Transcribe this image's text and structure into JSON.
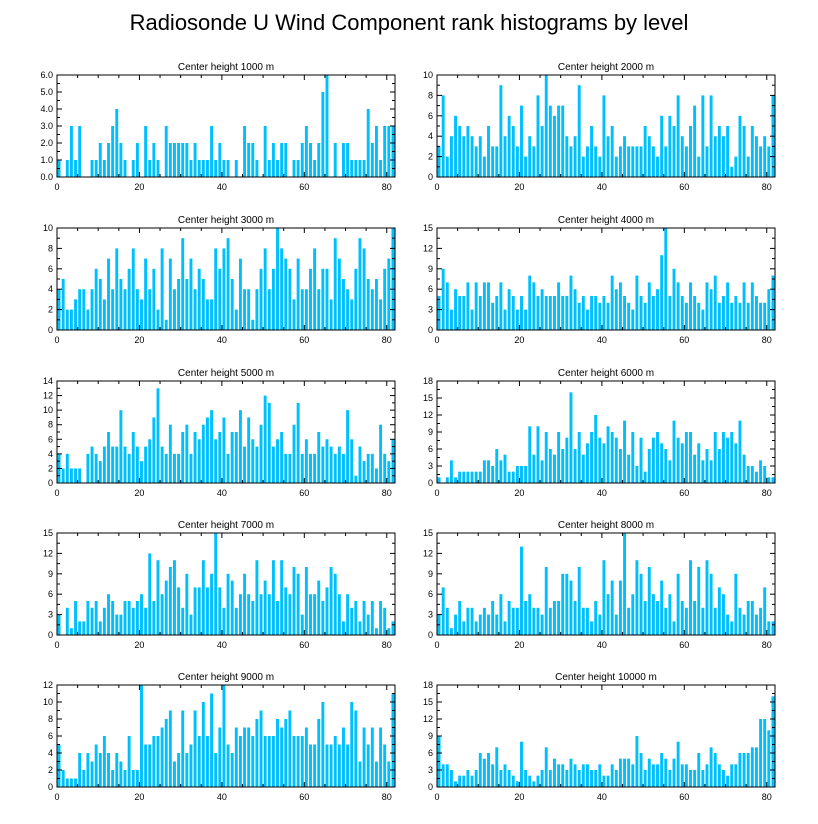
{
  "title": "Radiosonde U Wind Component rank histograms by level",
  "bar_color": "#00bfff",
  "frame_color": "#000000",
  "chart_data": [
    {
      "type": "bar",
      "title": "Center height 1000 m",
      "xlim": [
        0,
        82
      ],
      "ylim": [
        0,
        6
      ],
      "xticks": [
        0,
        20,
        40,
        60,
        80
      ],
      "yticks": [
        0,
        1,
        2,
        3,
        4,
        5,
        6
      ],
      "ytick_labels": [
        "0.0",
        "1.0",
        "2.0",
        "3.0",
        "4.0",
        "5.0",
        "6.0"
      ],
      "values": [
        1,
        0,
        1,
        3,
        1,
        3,
        0,
        0,
        1,
        1,
        2,
        1,
        2,
        3,
        4,
        2,
        1,
        0,
        1,
        2,
        0,
        3,
        1,
        2,
        1,
        0,
        3,
        2,
        2,
        2,
        2,
        2,
        1,
        2,
        1,
        1,
        1,
        3,
        1,
        2,
        1,
        1,
        0,
        1,
        0,
        3,
        2,
        2,
        1,
        0,
        3,
        1,
        2,
        1,
        2,
        2,
        0,
        1,
        1,
        2,
        3,
        2,
        1,
        2,
        5,
        6,
        0,
        2,
        0,
        2,
        2,
        1,
        1,
        1,
        1,
        4,
        2,
        3,
        1,
        3,
        3,
        3
      ]
    },
    {
      "type": "bar",
      "title": "Center height 2000 m",
      "xlim": [
        0,
        82
      ],
      "ylim": [
        0,
        10
      ],
      "xticks": [
        0,
        20,
        40,
        60,
        80
      ],
      "yticks": [
        0,
        2,
        4,
        6,
        8,
        10
      ],
      "ytick_labels": [
        "0",
        "2",
        "4",
        "6",
        "8",
        "10"
      ],
      "values": [
        3,
        8,
        2,
        4,
        6,
        5,
        4,
        5,
        4,
        3,
        4,
        2,
        5,
        3,
        3,
        9,
        4,
        6,
        5,
        3,
        7,
        2,
        4,
        3,
        8,
        5,
        10,
        7,
        6,
        7,
        7,
        4,
        3,
        4,
        9,
        2,
        3,
        5,
        3,
        2,
        8,
        4,
        5,
        2,
        3,
        4,
        3,
        3,
        3,
        3,
        5,
        4,
        3,
        2,
        6,
        3,
        6,
        5,
        8,
        4,
        3,
        5,
        7,
        2,
        8,
        3,
        8,
        4,
        5,
        4,
        5,
        1,
        2,
        6,
        5,
        2,
        5,
        4,
        3,
        4,
        3,
        8
      ]
    },
    {
      "type": "bar",
      "title": "Center height 3000 m",
      "xlim": [
        0,
        82
      ],
      "ylim": [
        0,
        10
      ],
      "xticks": [
        0,
        20,
        40,
        60,
        80
      ],
      "yticks": [
        0,
        2,
        4,
        6,
        8,
        10
      ],
      "ytick_labels": [
        "0",
        "2",
        "4",
        "6",
        "8",
        "10"
      ],
      "values": [
        4,
        5,
        2,
        2,
        3,
        4,
        4,
        2,
        4,
        6,
        5,
        3,
        7,
        4,
        8,
        5,
        4,
        6,
        8,
        4,
        3,
        7,
        4,
        6,
        2,
        8,
        1,
        7,
        4,
        5,
        9,
        5,
        7,
        4,
        6,
        5,
        3,
        3,
        8,
        6,
        8,
        9,
        5,
        2,
        7,
        4,
        4,
        1,
        4,
        6,
        8,
        4,
        6,
        10,
        8,
        7,
        6,
        3,
        7,
        4,
        4,
        6,
        8,
        4,
        6,
        6,
        3,
        9,
        7,
        5,
        4,
        3,
        6,
        9,
        8,
        5,
        4,
        5,
        3,
        6,
        7,
        10
      ]
    },
    {
      "type": "bar",
      "title": "Center height 4000 m",
      "xlim": [
        0,
        82
      ],
      "ylim": [
        0,
        15
      ],
      "xticks": [
        0,
        20,
        40,
        60,
        80
      ],
      "yticks": [
        0,
        3,
        6,
        9,
        12,
        15
      ],
      "ytick_labels": [
        "0",
        "3",
        "6",
        "9",
        "12",
        "15"
      ],
      "values": [
        5,
        9,
        7,
        3,
        6,
        5,
        5,
        7,
        3,
        7,
        5,
        7,
        7,
        4,
        5,
        7,
        3,
        6,
        5,
        3,
        5,
        3,
        8,
        7,
        5,
        6,
        5,
        5,
        5,
        7,
        5,
        5,
        8,
        6,
        4,
        5,
        3,
        5,
        5,
        4,
        5,
        4,
        8,
        6,
        7,
        5,
        4,
        3,
        8,
        5,
        4,
        7,
        5,
        6,
        11,
        15,
        5,
        9,
        7,
        5,
        4,
        7,
        5,
        4,
        3,
        7,
        6,
        8,
        4,
        5,
        7,
        4,
        5,
        4,
        7,
        4,
        7,
        5,
        4,
        4,
        6,
        8
      ]
    },
    {
      "type": "bar",
      "title": "Center height 5000 m",
      "xlim": [
        0,
        82
      ],
      "ylim": [
        0,
        14
      ],
      "xticks": [
        0,
        20,
        40,
        60,
        80
      ],
      "yticks": [
        0,
        2,
        4,
        6,
        8,
        10,
        12,
        14
      ],
      "ytick_labels": [
        "0",
        "2",
        "4",
        "6",
        "8",
        "10",
        "12",
        "14"
      ],
      "values": [
        4,
        2,
        4,
        2,
        2,
        2,
        0,
        4,
        5,
        4,
        3,
        5,
        7,
        5,
        5,
        10,
        5,
        4,
        7,
        5,
        3,
        5,
        6,
        9,
        13,
        5,
        4,
        8,
        4,
        4,
        7,
        8,
        4,
        7,
        6,
        8,
        9,
        10,
        6,
        7,
        9,
        4,
        7,
        7,
        10,
        5,
        9,
        6,
        5,
        8,
        12,
        11,
        5,
        6,
        7,
        4,
        4,
        8,
        11,
        4,
        6,
        4,
        4,
        7,
        5,
        6,
        5,
        4,
        5,
        4,
        10,
        6,
        1,
        5,
        3,
        4,
        4,
        2,
        8,
        4,
        3,
        6
      ]
    },
    {
      "type": "bar",
      "title": "Center height 6000 m",
      "xlim": [
        0,
        82
      ],
      "ylim": [
        0,
        18
      ],
      "xticks": [
        0,
        20,
        40,
        60,
        80
      ],
      "yticks": [
        0,
        3,
        6,
        9,
        12,
        15,
        18
      ],
      "ytick_labels": [
        "0",
        "3",
        "6",
        "9",
        "12",
        "15",
        "18"
      ],
      "values": [
        1,
        0,
        1,
        4,
        1,
        2,
        2,
        2,
        2,
        2,
        2,
        4,
        4,
        3,
        6,
        4,
        5,
        2,
        2,
        3,
        3,
        3,
        10,
        5,
        10,
        4,
        9,
        6,
        5,
        9,
        6,
        8,
        16,
        6,
        9,
        5,
        7,
        9,
        12,
        8,
        7,
        10,
        9,
        8,
        6,
        11,
        5,
        9,
        3,
        8,
        2,
        6,
        8,
        9,
        7,
        6,
        4,
        11,
        8,
        7,
        9,
        9,
        5,
        7,
        4,
        6,
        4,
        9,
        6,
        9,
        8,
        9,
        7,
        11,
        5,
        3,
        3,
        2,
        4,
        3,
        1,
        1
      ]
    },
    {
      "type": "bar",
      "title": "Center height 7000 m",
      "xlim": [
        0,
        82
      ],
      "ylim": [
        0,
        15
      ],
      "xticks": [
        0,
        20,
        40,
        60,
        80
      ],
      "yticks": [
        0,
        3,
        6,
        9,
        12,
        15
      ],
      "ytick_labels": [
        "0",
        "3",
        "6",
        "9",
        "12",
        "15"
      ],
      "values": [
        3,
        0,
        4,
        1,
        5,
        2,
        2,
        5,
        4,
        5,
        2,
        4,
        6,
        5,
        3,
        3,
        5,
        5,
        4,
        5,
        6,
        4,
        12,
        5,
        11,
        6,
        8,
        10,
        11,
        7,
        4,
        9,
        3,
        7,
        7,
        11,
        7,
        9,
        15,
        7,
        4,
        9,
        8,
        4,
        6,
        9,
        6,
        5,
        11,
        6,
        8,
        6,
        11,
        5,
        11,
        7,
        6,
        10,
        9,
        3,
        10,
        6,
        6,
        8,
        5,
        7,
        10,
        9,
        6,
        2,
        6,
        4,
        5,
        2,
        5,
        3,
        5,
        1,
        5,
        4,
        1,
        2
      ]
    },
    {
      "type": "bar",
      "title": "Center height 8000 m",
      "xlim": [
        0,
        82
      ],
      "ylim": [
        0,
        15
      ],
      "xticks": [
        0,
        20,
        40,
        60,
        80
      ],
      "yticks": [
        0,
        3,
        6,
        9,
        12,
        15
      ],
      "ytick_labels": [
        "0",
        "3",
        "6",
        "9",
        "12",
        "15"
      ],
      "values": [
        3,
        7,
        4,
        1,
        3,
        5,
        2,
        4,
        4,
        2,
        3,
        4,
        3,
        5,
        3,
        6,
        2,
        5,
        4,
        4,
        13,
        5,
        6,
        4,
        4,
        3,
        10,
        4,
        5,
        5,
        9,
        9,
        8,
        5,
        10,
        4,
        4,
        2,
        5,
        3,
        11,
        6,
        8,
        3,
        8,
        15,
        4,
        6,
        11,
        9,
        5,
        10,
        6,
        5,
        8,
        4,
        6,
        2,
        9,
        5,
        4,
        11,
        5,
        10,
        4,
        11,
        9,
        4,
        7,
        6,
        3,
        2,
        9,
        4,
        3,
        5,
        5,
        3,
        4,
        7,
        2,
        2
      ]
    },
    {
      "type": "bar",
      "title": "Center height 9000 m",
      "xlim": [
        0,
        82
      ],
      "ylim": [
        0,
        12
      ],
      "xticks": [
        0,
        20,
        40,
        60,
        80
      ],
      "yticks": [
        0,
        2,
        4,
        6,
        8,
        10,
        12
      ],
      "ytick_labels": [
        "0",
        "2",
        "4",
        "6",
        "8",
        "10",
        "12"
      ],
      "values": [
        5,
        2,
        1,
        1,
        1,
        4,
        2,
        4,
        3,
        5,
        4,
        6,
        4,
        2,
        4,
        3,
        2,
        6,
        2,
        2,
        12,
        5,
        5,
        6,
        6,
        7,
        8,
        9,
        3,
        4,
        9,
        4,
        5,
        9,
        6,
        10,
        6,
        11,
        4,
        7,
        12,
        5,
        4,
        7,
        6,
        7,
        7,
        6,
        8,
        9,
        6,
        6,
        6,
        8,
        7,
        8,
        9,
        6,
        6,
        6,
        7,
        5,
        5,
        8,
        10,
        5,
        5,
        6,
        5,
        7,
        5,
        10,
        9,
        3,
        7,
        5,
        7,
        3,
        7,
        5,
        3,
        11
      ]
    },
    {
      "type": "bar",
      "title": "Center height 10000 m",
      "xlim": [
        0,
        82
      ],
      "ylim": [
        0,
        18
      ],
      "xticks": [
        0,
        20,
        40,
        60,
        80
      ],
      "yticks": [
        0,
        3,
        6,
        9,
        12,
        15,
        18
      ],
      "ytick_labels": [
        "0",
        "3",
        "6",
        "9",
        "12",
        "15",
        "18"
      ],
      "values": [
        9,
        4,
        4,
        3,
        1,
        2,
        2,
        3,
        2,
        3,
        6,
        5,
        6,
        4,
        7,
        3,
        4,
        3,
        2,
        1,
        8,
        3,
        2,
        1,
        2,
        3,
        7,
        3,
        5,
        4,
        4,
        3,
        5,
        4,
        3,
        4,
        4,
        3,
        3,
        4,
        2,
        2,
        4,
        3,
        5,
        5,
        5,
        4,
        9,
        6,
        3,
        5,
        4,
        4,
        6,
        5,
        3,
        5,
        8,
        4,
        4,
        3,
        3,
        6,
        3,
        4,
        7,
        6,
        4,
        3,
        2,
        4,
        4,
        6,
        6,
        6,
        7,
        7,
        12,
        12,
        10,
        16
      ]
    }
  ]
}
